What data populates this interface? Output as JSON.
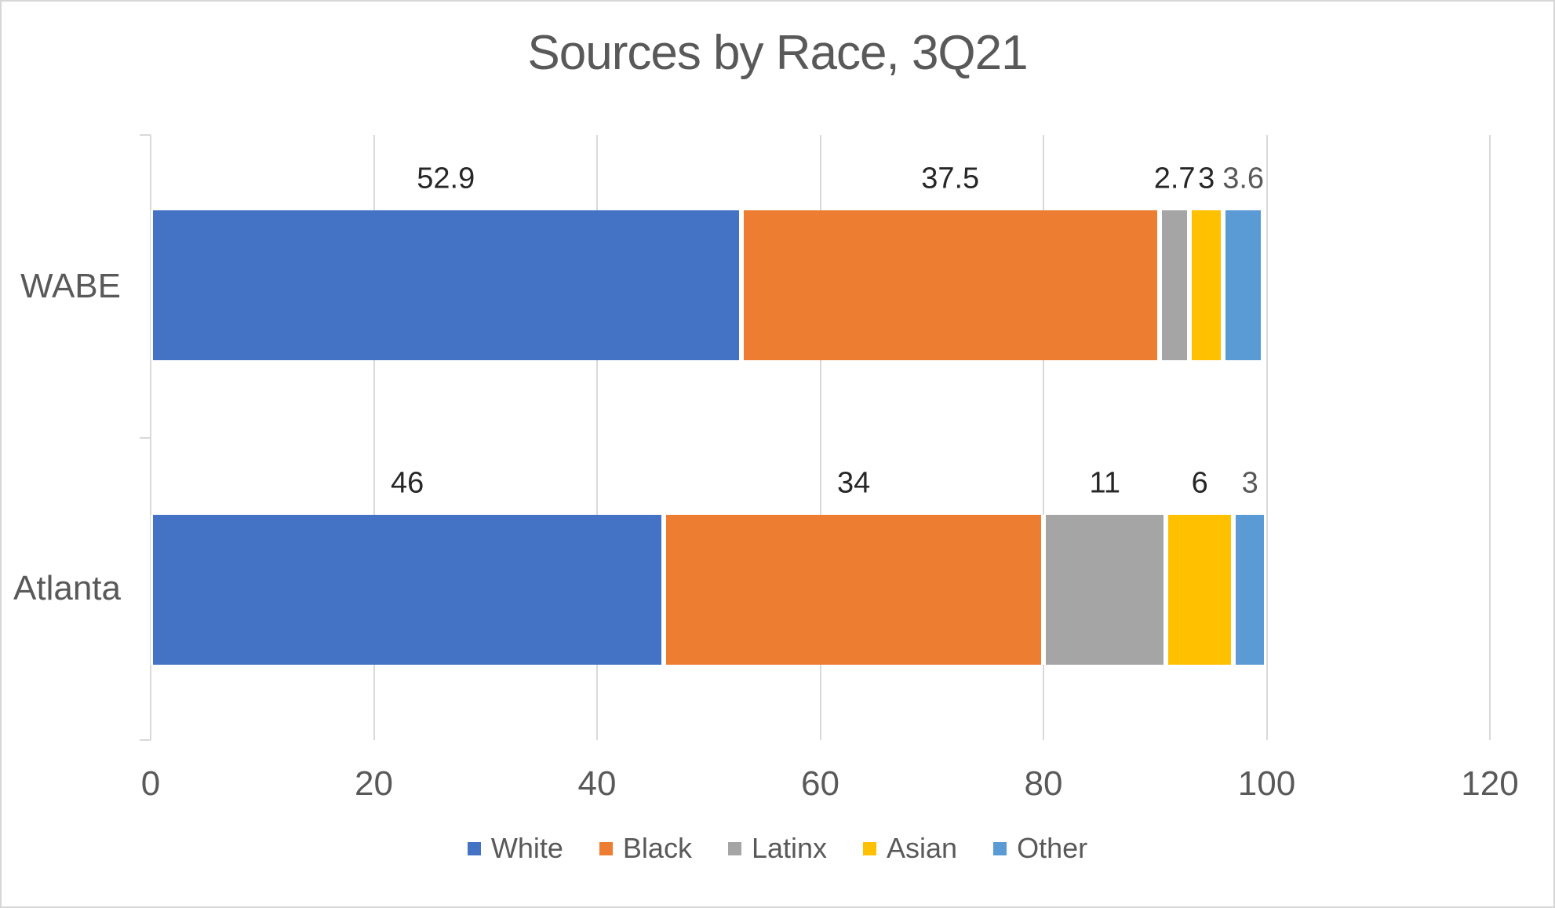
{
  "title": "Sources by Race, 3Q21",
  "colors": {
    "gridline": "#d9d9d9",
    "axis_line": "#d9d9d9",
    "border": "#d7d7d7",
    "title_text": "#595959",
    "axis_text": "#595959",
    "category_text": "#595959",
    "legend_text": "#595959",
    "data_label_default": "#262626",
    "data_label_other": "#595959"
  },
  "chart_data": {
    "type": "bar",
    "orientation": "horizontal",
    "stacked": true,
    "title": "Sources by Race, 3Q21",
    "xlabel": "",
    "ylabel": "",
    "xlim": [
      0,
      120
    ],
    "x_ticks": [
      0,
      20,
      40,
      60,
      80,
      100,
      120
    ],
    "grid": true,
    "legend_position": "bottom",
    "categories": [
      "WABE",
      "Atlanta"
    ],
    "series": [
      {
        "name": "White",
        "color": "#4472C4",
        "values": [
          52.9,
          46
        ],
        "label_color": "#262626"
      },
      {
        "name": "Black",
        "color": "#ED7D31",
        "values": [
          37.5,
          34
        ],
        "label_color": "#262626"
      },
      {
        "name": "Latinx",
        "color": "#A5A5A5",
        "values": [
          2.7,
          11
        ],
        "label_color": "#262626"
      },
      {
        "name": "Asian",
        "color": "#FFC000",
        "values": [
          3,
          6
        ],
        "label_color": "#262626"
      },
      {
        "name": "Other",
        "color": "#5B9BD5",
        "values": [
          3.6,
          3
        ],
        "label_color": "#595959"
      }
    ],
    "data_labels": {
      "WABE": [
        "52.9",
        "37.5",
        "2.7",
        "3",
        "3.6"
      ],
      "Atlanta": [
        "46",
        "34",
        "11",
        "6",
        "3"
      ]
    }
  }
}
